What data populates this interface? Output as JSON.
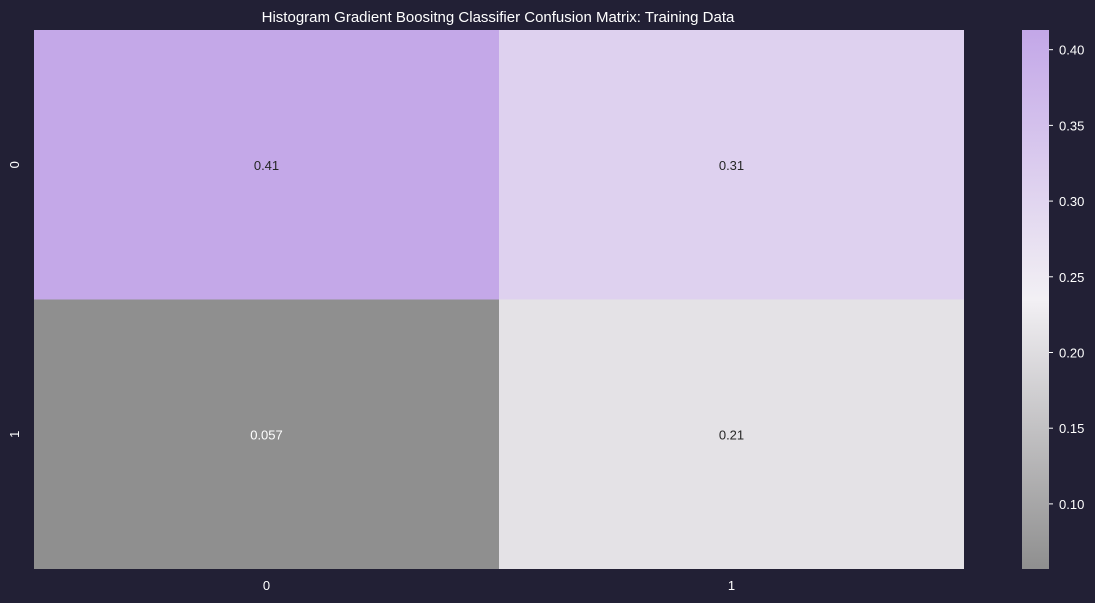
{
  "chart_data": {
    "type": "heatmap",
    "title": "Histogram Gradient Boositng Classifier Confusion Matrix: Training Data",
    "xlabel": "",
    "ylabel": "",
    "x_categories": [
      "0",
      "1"
    ],
    "y_categories": [
      "0",
      "1"
    ],
    "values": [
      [
        0.41,
        0.31
      ],
      [
        0.057,
        0.21
      ]
    ],
    "annotations": [
      [
        "0.41",
        "0.31"
      ],
      [
        "0.057",
        "0.21"
      ]
    ],
    "colorbar": {
      "min": 0.057,
      "max": 0.413,
      "ticks": [
        0.1,
        0.15,
        0.2,
        0.25,
        0.3,
        0.35,
        0.4
      ],
      "tick_labels": [
        "0.10",
        "0.15",
        "0.20",
        "0.25",
        "0.30",
        "0.35",
        "0.40"
      ]
    },
    "colors": {
      "background": "#222035",
      "low": "#8f8f8f",
      "mid": "#f2f0f4",
      "high": "#c3a7e8",
      "text": "#ffffff",
      "annotation_dark": "#262626",
      "annotation_light": "#ffffff"
    }
  }
}
